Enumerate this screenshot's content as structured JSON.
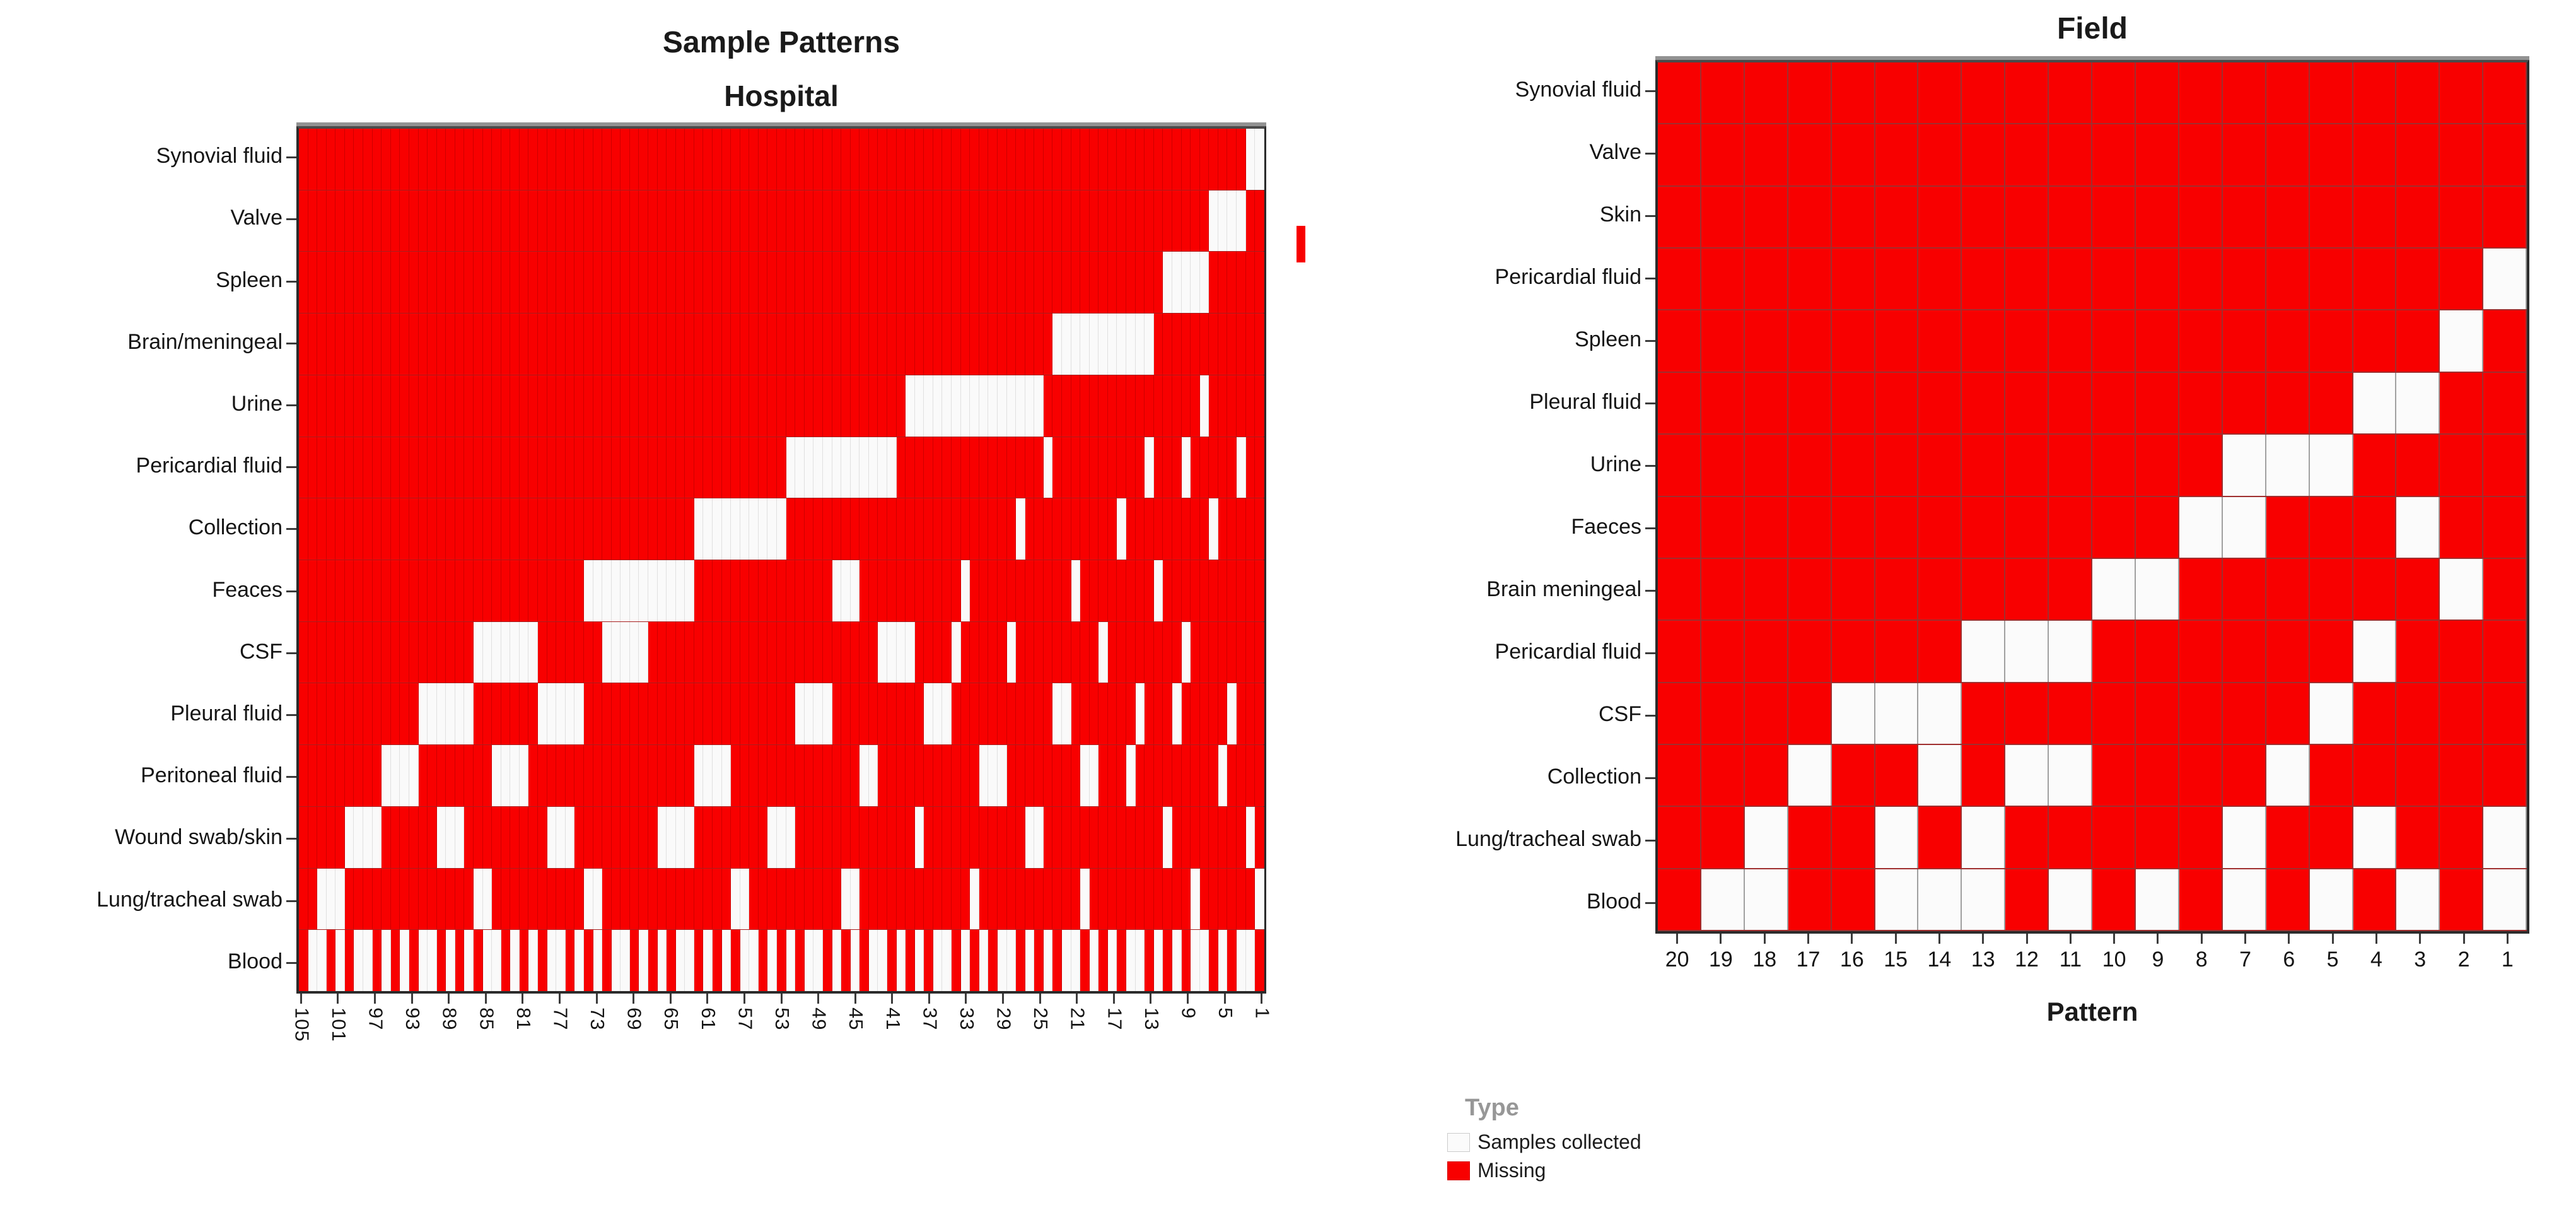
{
  "colors": {
    "missing": "#f80000",
    "collected": "#fbfbfb",
    "axis": "#2b2b2b",
    "legend_title_gray": "#979797"
  },
  "legend": {
    "title": "Type",
    "items": [
      {
        "label": "Samples collected",
        "color": "#fbfbfb"
      },
      {
        "label": "Missing",
        "color": "#f80000"
      }
    ]
  },
  "chart_data": [
    {
      "type": "heatmap",
      "id": "hospital",
      "title": "Sample Patterns",
      "subtitle": "Hospital",
      "xlabel": "",
      "pattern_count": 105,
      "x_ticks": [
        105,
        101,
        97,
        93,
        89,
        85,
        81,
        77,
        73,
        69,
        65,
        61,
        57,
        53,
        49,
        45,
        41,
        37,
        33,
        29,
        25,
        21,
        17,
        13,
        9,
        5,
        1
      ],
      "x_axis_order": "patterns run 105 (left) to 1 (right)",
      "categories": [
        "Synovial fluid",
        "Valve",
        "Spleen",
        "Brain/meningeal",
        "Urine",
        "Pericardial fluid",
        "Collection",
        "Feaces",
        "CSF",
        "Pleural fluid",
        "Peritoneal fluid",
        "Wound swab/skin",
        "Lung/tracheal swab",
        "Blood"
      ],
      "cell_legend": {
        "white": "Samples collected",
        "red": "Missing"
      },
      "white_ranges": [
        [
          [
            1,
            2
          ]
        ],
        [
          [
            3,
            6
          ]
        ],
        [
          [
            7,
            11
          ]
        ],
        [
          [
            13,
            23
          ]
        ],
        [
          [
            7,
            7
          ],
          [
            25,
            39
          ]
        ],
        [
          [
            3,
            3
          ],
          [
            9,
            9
          ],
          [
            13,
            13
          ],
          [
            24,
            24
          ],
          [
            41,
            52
          ]
        ],
        [
          [
            6,
            6
          ],
          [
            16,
            16
          ],
          [
            27,
            27
          ],
          [
            53,
            62
          ]
        ],
        [
          [
            12,
            12
          ],
          [
            21,
            21
          ],
          [
            33,
            33
          ],
          [
            45,
            47
          ],
          [
            63,
            74
          ]
        ],
        [
          [
            9,
            9
          ],
          [
            18,
            18
          ],
          [
            28,
            28
          ],
          [
            34,
            34
          ],
          [
            39,
            42
          ],
          [
            68,
            72
          ],
          [
            80,
            86
          ]
        ],
        [
          [
            4,
            4
          ],
          [
            10,
            10
          ],
          [
            14,
            14
          ],
          [
            22,
            23
          ],
          [
            35,
            37
          ],
          [
            48,
            51
          ],
          [
            75,
            79
          ],
          [
            87,
            92
          ]
        ],
        [
          [
            5,
            5
          ],
          [
            15,
            15
          ],
          [
            19,
            20
          ],
          [
            29,
            31
          ],
          [
            43,
            44
          ],
          [
            59,
            62
          ],
          [
            81,
            84
          ],
          [
            93,
            96
          ]
        ],
        [
          [
            2,
            2
          ],
          [
            11,
            11
          ],
          [
            25,
            26
          ],
          [
            38,
            38
          ],
          [
            52,
            54
          ],
          [
            63,
            66
          ],
          [
            76,
            78
          ],
          [
            88,
            90
          ],
          [
            97,
            100
          ]
        ],
        [
          [
            1,
            1
          ],
          [
            8,
            8
          ],
          [
            20,
            20
          ],
          [
            32,
            32
          ],
          [
            45,
            46
          ],
          [
            57,
            58
          ],
          [
            73,
            74
          ],
          [
            85,
            86
          ],
          [
            101,
            103
          ]
        ],
        [
          [
            2,
            3
          ],
          [
            5,
            5
          ],
          [
            7,
            8
          ],
          [
            10,
            10
          ],
          [
            12,
            12
          ],
          [
            14,
            15
          ],
          [
            17,
            17
          ],
          [
            19,
            19
          ],
          [
            21,
            22
          ],
          [
            24,
            24
          ],
          [
            26,
            26
          ],
          [
            28,
            29
          ],
          [
            31,
            31
          ],
          [
            33,
            33
          ],
          [
            35,
            36
          ],
          [
            38,
            38
          ],
          [
            40,
            40
          ],
          [
            42,
            43
          ],
          [
            45,
            45
          ],
          [
            47,
            47
          ],
          [
            49,
            50
          ],
          [
            52,
            52
          ],
          [
            54,
            54
          ],
          [
            56,
            57
          ],
          [
            59,
            59
          ],
          [
            61,
            61
          ],
          [
            63,
            64
          ],
          [
            66,
            66
          ],
          [
            68,
            68
          ],
          [
            70,
            71
          ],
          [
            73,
            73
          ],
          [
            75,
            75
          ],
          [
            77,
            78
          ],
          [
            80,
            80
          ],
          [
            82,
            82
          ],
          [
            84,
            85
          ],
          [
            87,
            87
          ],
          [
            89,
            89
          ],
          [
            91,
            92
          ],
          [
            94,
            94
          ],
          [
            96,
            96
          ],
          [
            98,
            99
          ],
          [
            101,
            101
          ],
          [
            103,
            104
          ]
        ]
      ]
    },
    {
      "type": "heatmap",
      "id": "field",
      "title": "Field",
      "subtitle": "",
      "xlabel": "Pattern",
      "pattern_count": 20,
      "x_ticks": [
        20,
        19,
        18,
        17,
        16,
        15,
        14,
        13,
        12,
        11,
        10,
        9,
        8,
        7,
        6,
        5,
        4,
        3,
        2,
        1
      ],
      "x_axis_order": "patterns run 20 (left) to 1 (right)",
      "categories": [
        "Synovial fluid",
        "Valve",
        "Skin",
        "Pericardial fluid",
        "Spleen",
        "Pleural fluid",
        "Urine",
        "Faeces",
        "Brain meningeal",
        "Pericardial fluid",
        "CSF",
        "Collection",
        "Lung/tracheal swab",
        "Blood"
      ],
      "cell_legend": {
        "white": "Samples collected",
        "red": "Missing"
      },
      "white_patterns": [
        [],
        [],
        [],
        [
          1
        ],
        [
          2
        ],
        [
          3,
          4
        ],
        [
          5,
          6,
          7
        ],
        [
          3,
          7,
          8
        ],
        [
          2,
          9,
          10
        ],
        [
          4,
          11,
          12,
          13
        ],
        [
          5,
          14,
          15,
          16
        ],
        [
          6,
          11,
          12,
          14,
          17
        ],
        [
          1,
          4,
          7,
          13,
          15,
          18
        ],
        [
          1,
          3,
          5,
          7,
          9,
          11,
          13,
          14,
          15,
          18,
          19
        ]
      ]
    }
  ]
}
